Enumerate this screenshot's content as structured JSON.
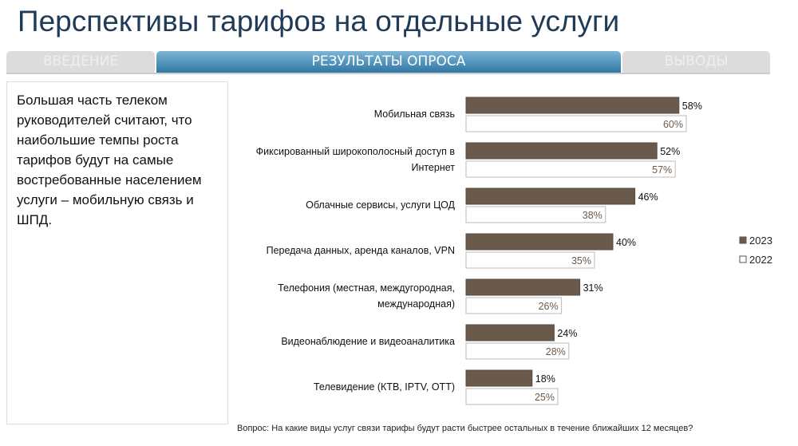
{
  "title": "Перспективы тарифов на отдельные услуги",
  "tabs": [
    {
      "label": "ВВЕДЕНИЕ"
    },
    {
      "label": "РЕЗУЛЬТАТЫ ОПРОСА"
    },
    {
      "label": "ВЫВОДЫ"
    }
  ],
  "summary": "Большая часть телеком руководителей считают, что наибольшие темпы роста тарифов будут на самые востребованные населением услуги – мобильную связь и ШПД.",
  "question": "Вопрос: На какие виды услуг связи тарифы будут расти быстрее остальных в течение ближайших 12 месяцев?",
  "chart_data": {
    "type": "bar",
    "orientation": "horizontal",
    "categories": [
      [
        "Мобильная связь"
      ],
      [
        "Фиксированный широкополосный доступ в",
        "Интернет"
      ],
      [
        "Облачные сервисы, услуги ЦОД"
      ],
      [
        "Передача данных, аренда каналов, VPN"
      ],
      [
        "Телефония (местная, междугородная,",
        "международная)"
      ],
      [
        "Видеонаблюдение и видеоаналитика"
      ],
      [
        "Телевидение (КТВ, IPTV, ОТТ)"
      ]
    ],
    "series": [
      {
        "name": "2023",
        "values": [
          58,
          52,
          46,
          40,
          31,
          24,
          18
        ],
        "labels": [
          "58%",
          "52%",
          "46%",
          "40%",
          "31%",
          "24%",
          "18%"
        ],
        "color": "#695a4c"
      },
      {
        "name": "2022",
        "values": [
          60,
          57,
          38,
          35,
          26,
          28,
          25
        ],
        "labels": [
          "60%",
          "57%",
          "38%",
          "35%",
          "26%",
          "28%",
          "25%"
        ],
        "color": "#ffffff"
      }
    ],
    "legend": "right",
    "unit": "%"
  }
}
